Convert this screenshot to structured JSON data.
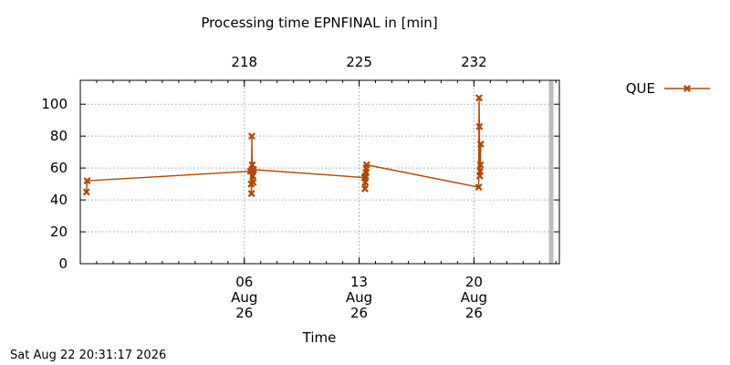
{
  "footer": {
    "timestamp": "Sat Aug 22 20:31:17 2026"
  },
  "chart_data": {
    "type": "line",
    "title": "Processing time EPNFINAL in [min]",
    "xlabel": "Time",
    "ylabel": "",
    "ylim": [
      0,
      115
    ],
    "yticks": [
      0,
      20,
      40,
      60,
      80,
      100
    ],
    "xlim": [
      "2026-07-27T00:00",
      "2026-08-25T05:00"
    ],
    "xticks": [
      {
        "date": "2026-08-06",
        "lines": [
          "06",
          "Aug",
          "26"
        ]
      },
      {
        "date": "2026-08-13",
        "lines": [
          "13",
          "Aug",
          "26"
        ]
      },
      {
        "date": "2026-08-20",
        "lines": [
          "20",
          "Aug",
          "26"
        ]
      }
    ],
    "x2ticks": [
      {
        "date": "2026-08-06",
        "label": "218"
      },
      {
        "date": "2026-08-13",
        "label": "225"
      },
      {
        "date": "2026-08-20",
        "label": "232"
      }
    ],
    "grid": true,
    "legend": "top-right",
    "marker_line_date": "2026-08-24T17:00",
    "series": [
      {
        "name": "QUE",
        "color": "#b34700",
        "marker": "x",
        "points": [
          [
            "2026-07-27T09:00",
            45
          ],
          [
            "2026-07-27T10:00",
            52
          ],
          [
            "2026-08-06T09:00",
            58
          ],
          [
            "2026-08-06T10:00",
            50
          ],
          [
            "2026-08-06T10:30",
            44
          ],
          [
            "2026-08-06T11:00",
            80
          ],
          [
            "2026-08-06T11:30",
            62
          ],
          [
            "2026-08-06T12:00",
            58
          ],
          [
            "2026-08-06T12:30",
            55
          ],
          [
            "2026-08-06T13:00",
            51
          ],
          [
            "2026-08-06T13:30",
            59
          ],
          [
            "2026-08-13T08:00",
            54
          ],
          [
            "2026-08-13T08:30",
            47
          ],
          [
            "2026-08-13T09:00",
            51
          ],
          [
            "2026-08-13T09:30",
            55
          ],
          [
            "2026-08-13T10:00",
            57
          ],
          [
            "2026-08-13T10:30",
            60
          ],
          [
            "2026-08-13T11:00",
            62
          ],
          [
            "2026-08-20T07:00",
            48
          ],
          [
            "2026-08-20T07:30",
            104
          ],
          [
            "2026-08-20T08:00",
            86
          ],
          [
            "2026-08-20T08:30",
            55
          ],
          [
            "2026-08-20T09:00",
            58
          ],
          [
            "2026-08-20T09:30",
            62
          ],
          [
            "2026-08-20T10:00",
            75
          ]
        ]
      }
    ]
  }
}
